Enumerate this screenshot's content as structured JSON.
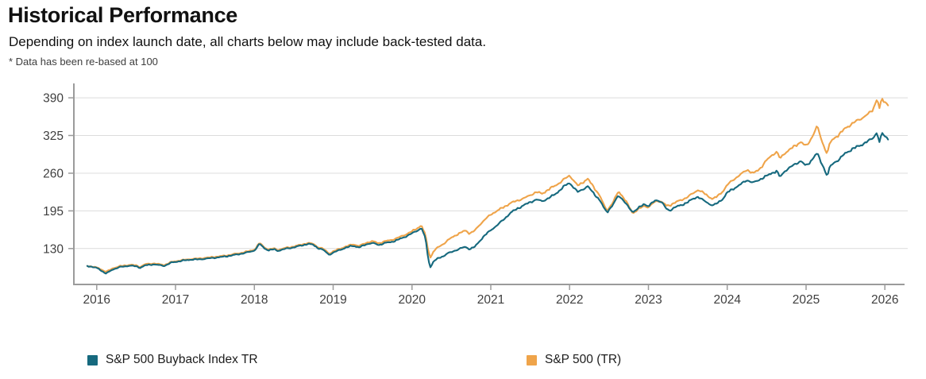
{
  "header": {
    "title": "Historical Performance",
    "subtitle": "Depending on index launch date, all charts below may include back-tested data.",
    "footnote": "* Data has been re-based at 100"
  },
  "colors": {
    "teal": "#16697E",
    "orange": "#EFA44A",
    "grid": "#dcdcdc",
    "axis": "#9b9b9b",
    "tick_label": "#3f3f3f"
  },
  "chart_data": {
    "type": "line",
    "title": "",
    "xlabel": "",
    "ylabel": "",
    "grid": "horizontal",
    "legend_position": "bottom",
    "x_ticks": [
      2016,
      2017,
      2018,
      2019,
      2020,
      2021,
      2022,
      2023,
      2024,
      2025,
      2026
    ],
    "y_ticks": [
      130,
      195,
      260,
      325,
      390
    ],
    "xlim": [
      2015.71,
      2026.29
    ],
    "ylim": [
      68,
      408
    ],
    "series": [
      {
        "name": "S&P 500 Buyback Index TR",
        "color": "#16697E",
        "points": [
          [
            2015.88,
            100
          ],
          [
            2015.95,
            98
          ],
          [
            2016.02,
            96
          ],
          [
            2016.08,
            90
          ],
          [
            2016.12,
            87
          ],
          [
            2016.2,
            94
          ],
          [
            2016.3,
            98
          ],
          [
            2016.42,
            100
          ],
          [
            2016.5,
            99
          ],
          [
            2016.55,
            96.5
          ],
          [
            2016.62,
            101
          ],
          [
            2016.72,
            103
          ],
          [
            2016.8,
            101.5
          ],
          [
            2016.86,
            100.5
          ],
          [
            2016.95,
            106
          ],
          [
            2017.0,
            107
          ],
          [
            2017.1,
            109
          ],
          [
            2017.2,
            110.5
          ],
          [
            2017.3,
            111
          ],
          [
            2017.42,
            113
          ],
          [
            2017.5,
            114.5
          ],
          [
            2017.6,
            116
          ],
          [
            2017.7,
            118
          ],
          [
            2017.8,
            120
          ],
          [
            2017.9,
            122.5
          ],
          [
            2018.0,
            126
          ],
          [
            2018.07,
            138
          ],
          [
            2018.12,
            131
          ],
          [
            2018.18,
            127
          ],
          [
            2018.25,
            129
          ],
          [
            2018.3,
            126.5
          ],
          [
            2018.4,
            130
          ],
          [
            2018.5,
            132
          ],
          [
            2018.6,
            135
          ],
          [
            2018.68,
            137.5
          ],
          [
            2018.75,
            136
          ],
          [
            2018.8,
            131
          ],
          [
            2018.88,
            127
          ],
          [
            2018.95,
            119.5
          ],
          [
            2019.0,
            123
          ],
          [
            2019.08,
            128
          ],
          [
            2019.17,
            132
          ],
          [
            2019.25,
            135
          ],
          [
            2019.33,
            131.5
          ],
          [
            2019.42,
            137
          ],
          [
            2019.5,
            139
          ],
          [
            2019.58,
            136
          ],
          [
            2019.67,
            140
          ],
          [
            2019.75,
            142
          ],
          [
            2019.83,
            146
          ],
          [
            2019.92,
            151
          ],
          [
            2020.0,
            156
          ],
          [
            2020.07,
            161
          ],
          [
            2020.12,
            165
          ],
          [
            2020.17,
            148
          ],
          [
            2020.2,
            118
          ],
          [
            2020.23,
            96
          ],
          [
            2020.27,
            107
          ],
          [
            2020.32,
            112
          ],
          [
            2020.4,
            117
          ],
          [
            2020.45,
            122
          ],
          [
            2020.5,
            124
          ],
          [
            2020.55,
            127
          ],
          [
            2020.62,
            131
          ],
          [
            2020.68,
            133
          ],
          [
            2020.73,
            129
          ],
          [
            2020.8,
            133
          ],
          [
            2020.85,
            141
          ],
          [
            2020.92,
            152
          ],
          [
            2021.0,
            161
          ],
          [
            2021.08,
            170
          ],
          [
            2021.17,
            181
          ],
          [
            2021.25,
            192
          ],
          [
            2021.33,
            199
          ],
          [
            2021.42,
            205
          ],
          [
            2021.5,
            210
          ],
          [
            2021.58,
            214
          ],
          [
            2021.65,
            211
          ],
          [
            2021.73,
            216
          ],
          [
            2021.8,
            222
          ],
          [
            2021.88,
            231
          ],
          [
            2021.95,
            240
          ],
          [
            2022.0,
            244
          ],
          [
            2022.05,
            236
          ],
          [
            2022.1,
            228
          ],
          [
            2022.17,
            233
          ],
          [
            2022.23,
            237
          ],
          [
            2022.3,
            226
          ],
          [
            2022.38,
            213
          ],
          [
            2022.45,
            196
          ],
          [
            2022.48,
            193
          ],
          [
            2022.55,
            205
          ],
          [
            2022.62,
            222
          ],
          [
            2022.68,
            214
          ],
          [
            2022.75,
            201
          ],
          [
            2022.8,
            193.5
          ],
          [
            2022.88,
            201
          ],
          [
            2022.95,
            207
          ],
          [
            2023.0,
            203
          ],
          [
            2023.07,
            211
          ],
          [
            2023.12,
            213
          ],
          [
            2023.18,
            208
          ],
          [
            2023.23,
            197
          ],
          [
            2023.27,
            195
          ],
          [
            2023.33,
            201
          ],
          [
            2023.42,
            205
          ],
          [
            2023.5,
            211
          ],
          [
            2023.58,
            217
          ],
          [
            2023.63,
            220
          ],
          [
            2023.7,
            213
          ],
          [
            2023.77,
            207
          ],
          [
            2023.82,
            204
          ],
          [
            2023.88,
            208
          ],
          [
            2023.95,
            216
          ],
          [
            2024.0,
            226
          ],
          [
            2024.08,
            233
          ],
          [
            2024.17,
            241
          ],
          [
            2024.25,
            249
          ],
          [
            2024.33,
            244
          ],
          [
            2024.42,
            250
          ],
          [
            2024.5,
            255
          ],
          [
            2024.57,
            260
          ],
          [
            2024.63,
            263
          ],
          [
            2024.67,
            252
          ],
          [
            2024.73,
            263
          ],
          [
            2024.8,
            270
          ],
          [
            2024.88,
            277
          ],
          [
            2024.93,
            282
          ],
          [
            2025.0,
            273
          ],
          [
            2025.05,
            280
          ],
          [
            2025.1,
            289
          ],
          [
            2025.14,
            295
          ],
          [
            2025.2,
            276
          ],
          [
            2025.23,
            268
          ],
          [
            2025.27,
            254
          ],
          [
            2025.3,
            270
          ],
          [
            2025.35,
            277
          ],
          [
            2025.42,
            283
          ],
          [
            2025.5,
            294
          ],
          [
            2025.58,
            301
          ],
          [
            2025.65,
            306
          ],
          [
            2025.72,
            311
          ],
          [
            2025.8,
            317
          ],
          [
            2025.85,
            322
          ],
          [
            2025.9,
            331
          ],
          [
            2025.93,
            313
          ],
          [
            2025.96,
            328
          ],
          [
            2026.0,
            325
          ],
          [
            2026.04,
            318
          ]
        ]
      },
      {
        "name": "S&P 500 (TR)",
        "color": "#EFA44A",
        "points": [
          [
            2015.88,
            100
          ],
          [
            2015.95,
            98.5
          ],
          [
            2016.02,
            97
          ],
          [
            2016.08,
            92.5
          ],
          [
            2016.12,
            90
          ],
          [
            2016.2,
            96
          ],
          [
            2016.3,
            99.5
          ],
          [
            2016.42,
            101.5
          ],
          [
            2016.5,
            100.5
          ],
          [
            2016.55,
            98
          ],
          [
            2016.62,
            103
          ],
          [
            2016.72,
            104.5
          ],
          [
            2016.8,
            103
          ],
          [
            2016.86,
            102
          ],
          [
            2016.95,
            107
          ],
          [
            2017.0,
            108
          ],
          [
            2017.1,
            110
          ],
          [
            2017.2,
            111.5
          ],
          [
            2017.3,
            112.5
          ],
          [
            2017.42,
            114.5
          ],
          [
            2017.5,
            116
          ],
          [
            2017.6,
            117.5
          ],
          [
            2017.7,
            119.5
          ],
          [
            2017.8,
            121.5
          ],
          [
            2017.9,
            124
          ],
          [
            2018.0,
            127.5
          ],
          [
            2018.07,
            139.5
          ],
          [
            2018.12,
            132.5
          ],
          [
            2018.18,
            128.5
          ],
          [
            2018.25,
            130.5
          ],
          [
            2018.3,
            128
          ],
          [
            2018.4,
            131.5
          ],
          [
            2018.5,
            133.5
          ],
          [
            2018.6,
            136.5
          ],
          [
            2018.68,
            139
          ],
          [
            2018.75,
            137.5
          ],
          [
            2018.8,
            132.5
          ],
          [
            2018.88,
            129
          ],
          [
            2018.95,
            121.5
          ],
          [
            2019.0,
            125
          ],
          [
            2019.08,
            130
          ],
          [
            2019.17,
            134
          ],
          [
            2019.25,
            137.5
          ],
          [
            2019.33,
            134
          ],
          [
            2019.42,
            139.5
          ],
          [
            2019.5,
            142
          ],
          [
            2019.58,
            139
          ],
          [
            2019.67,
            143
          ],
          [
            2019.75,
            145.5
          ],
          [
            2019.83,
            149.5
          ],
          [
            2019.92,
            154.5
          ],
          [
            2020.0,
            159.5
          ],
          [
            2020.07,
            165
          ],
          [
            2020.12,
            169.5
          ],
          [
            2020.17,
            153
          ],
          [
            2020.2,
            131
          ],
          [
            2020.23,
            113
          ],
          [
            2020.27,
            124
          ],
          [
            2020.32,
            131
          ],
          [
            2020.4,
            138
          ],
          [
            2020.45,
            144
          ],
          [
            2020.5,
            149
          ],
          [
            2020.55,
            153
          ],
          [
            2020.62,
            158
          ],
          [
            2020.68,
            161.5
          ],
          [
            2020.73,
            156
          ],
          [
            2020.8,
            161
          ],
          [
            2020.85,
            169
          ],
          [
            2020.92,
            179
          ],
          [
            2021.0,
            188
          ],
          [
            2021.08,
            195
          ],
          [
            2021.17,
            202
          ],
          [
            2021.25,
            209
          ],
          [
            2021.33,
            213
          ],
          [
            2021.42,
            217
          ],
          [
            2021.5,
            222
          ],
          [
            2021.58,
            227
          ],
          [
            2021.65,
            224
          ],
          [
            2021.73,
            231
          ],
          [
            2021.8,
            237
          ],
          [
            2021.88,
            244
          ],
          [
            2021.95,
            252
          ],
          [
            2022.0,
            257
          ],
          [
            2022.05,
            248
          ],
          [
            2022.1,
            239
          ],
          [
            2022.17,
            245
          ],
          [
            2022.23,
            250
          ],
          [
            2022.3,
            237
          ],
          [
            2022.38,
            221
          ],
          [
            2022.45,
            200
          ],
          [
            2022.48,
            196
          ],
          [
            2022.55,
            209
          ],
          [
            2022.62,
            229
          ],
          [
            2022.68,
            219
          ],
          [
            2022.75,
            204
          ],
          [
            2022.8,
            191.5
          ],
          [
            2022.88,
            199
          ],
          [
            2022.95,
            204
          ],
          [
            2023.0,
            201
          ],
          [
            2023.07,
            209
          ],
          [
            2023.12,
            212
          ],
          [
            2023.18,
            209
          ],
          [
            2023.23,
            203
          ],
          [
            2023.27,
            204
          ],
          [
            2023.33,
            209
          ],
          [
            2023.42,
            214
          ],
          [
            2023.5,
            220
          ],
          [
            2023.58,
            227
          ],
          [
            2023.63,
            232
          ],
          [
            2023.7,
            226
          ],
          [
            2023.77,
            219
          ],
          [
            2023.82,
            215
          ],
          [
            2023.88,
            220
          ],
          [
            2023.95,
            229
          ],
          [
            2024.0,
            239
          ],
          [
            2024.08,
            249
          ],
          [
            2024.17,
            258
          ],
          [
            2024.25,
            267
          ],
          [
            2024.33,
            260
          ],
          [
            2024.42,
            269
          ],
          [
            2024.5,
            282
          ],
          [
            2024.57,
            291
          ],
          [
            2024.63,
            296
          ],
          [
            2024.67,
            284
          ],
          [
            2024.73,
            294
          ],
          [
            2024.8,
            301
          ],
          [
            2024.88,
            309
          ],
          [
            2024.93,
            315
          ],
          [
            2025.0,
            307
          ],
          [
            2025.05,
            317
          ],
          [
            2025.1,
            330
          ],
          [
            2025.14,
            342
          ],
          [
            2025.2,
            316
          ],
          [
            2025.23,
            305
          ],
          [
            2025.27,
            293
          ],
          [
            2025.3,
            311
          ],
          [
            2025.35,
            319
          ],
          [
            2025.42,
            326
          ],
          [
            2025.5,
            337
          ],
          [
            2025.58,
            345
          ],
          [
            2025.65,
            351
          ],
          [
            2025.72,
            357
          ],
          [
            2025.8,
            364
          ],
          [
            2025.85,
            371
          ],
          [
            2025.9,
            390
          ],
          [
            2025.93,
            372
          ],
          [
            2025.96,
            387
          ],
          [
            2026.0,
            383
          ],
          [
            2026.04,
            377
          ]
        ]
      }
    ]
  }
}
